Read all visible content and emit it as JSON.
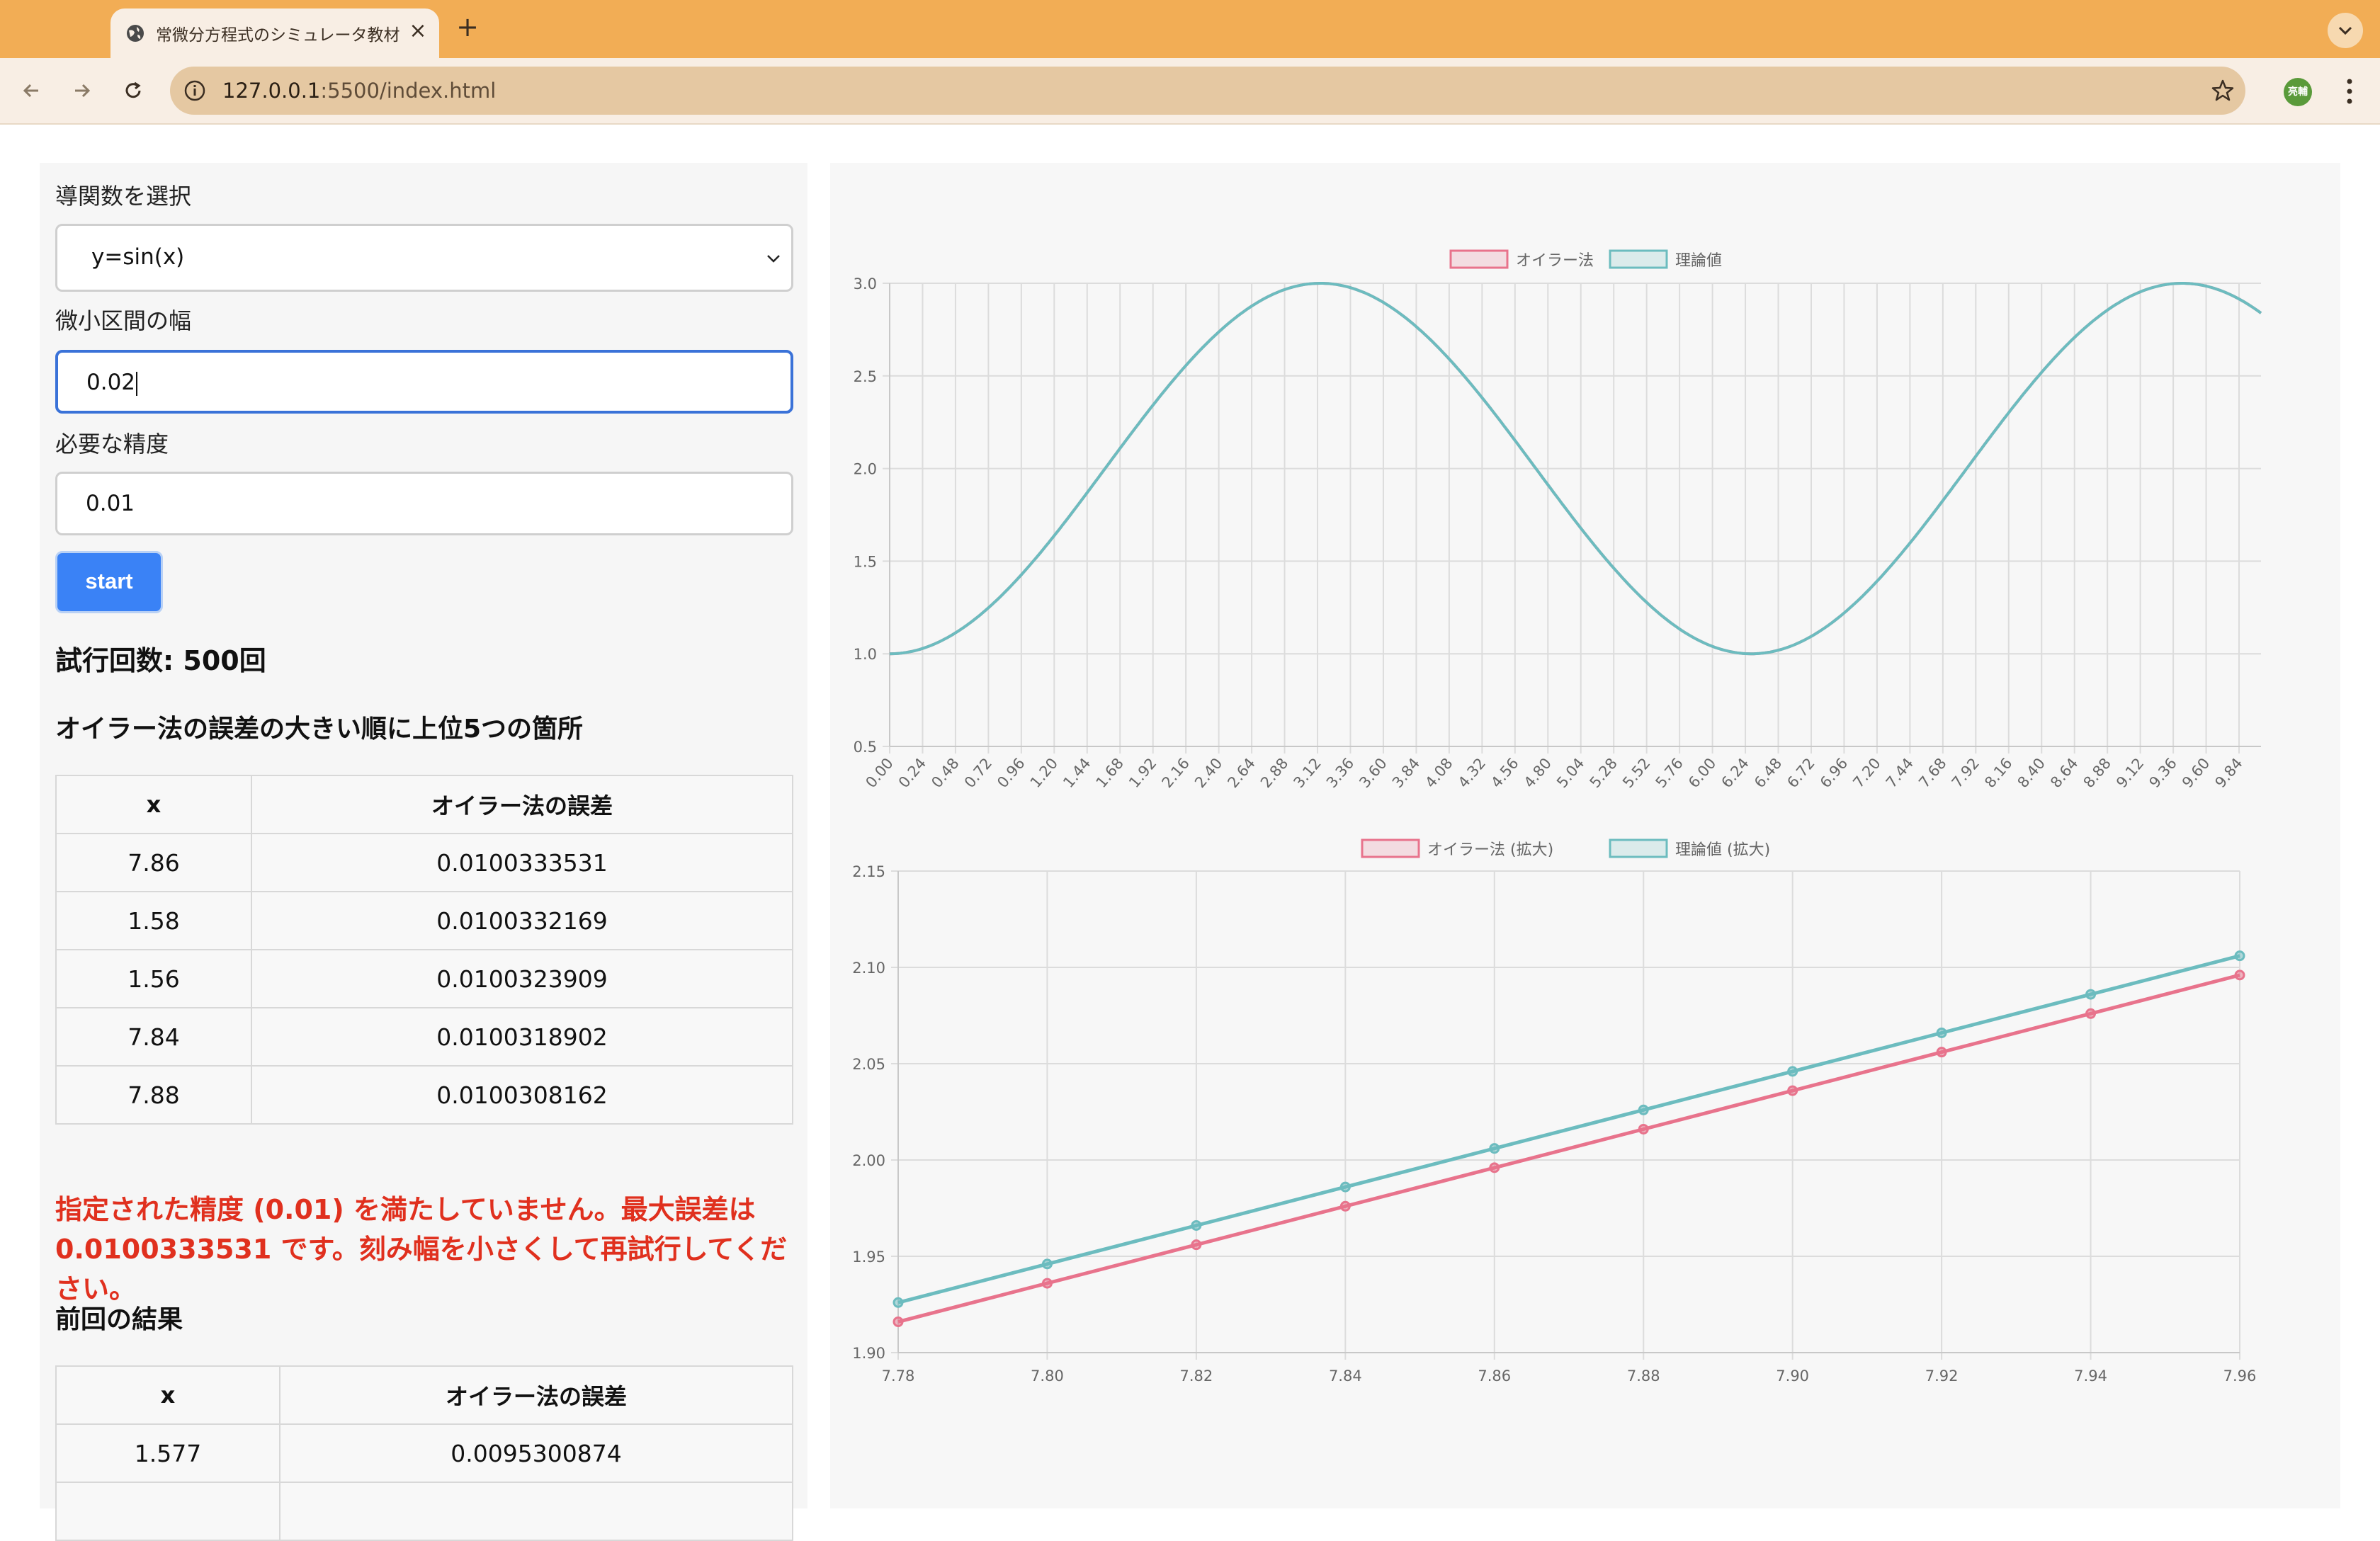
{
  "browser": {
    "tab_title": "常微分方程式のシミュレータ教材",
    "url_host": "127.0.0.1",
    "url_path": ":5500/index.html",
    "avatar_text": "亮輔"
  },
  "form": {
    "derivative_label": "導関数を選択",
    "derivative_value": "y=sin(x)",
    "step_label": "微小区間の幅",
    "step_value": "0.02",
    "precision_label": "必要な精度",
    "precision_value": "0.01",
    "start_label": "start"
  },
  "results": {
    "trial_count": "試行回数: 500回",
    "top_title": "オイラー法の誤差の大きい順に上位5つの箇所",
    "columns": [
      "x",
      "オイラー法の誤差"
    ],
    "rows": [
      {
        "x": "7.86",
        "err": "0.0100333531"
      },
      {
        "x": "1.58",
        "err": "0.0100332169"
      },
      {
        "x": "1.56",
        "err": "0.0100323909"
      },
      {
        "x": "7.84",
        "err": "0.0100318902"
      },
      {
        "x": "7.88",
        "err": "0.0100308162"
      }
    ],
    "error_message": "指定された精度 (0.01) を満たしていません。最大誤差は 0.0100333531 です。刻み幅を小さくして再試行してください。",
    "previous_title": "前回の結果",
    "previous_columns": [
      "x",
      "オイラー法の誤差"
    ],
    "previous_rows": [
      {
        "x": "1.577",
        "err": "0.0095300874"
      }
    ]
  },
  "colors": {
    "euler": "#e8738c",
    "theory": "#6cbcbf",
    "error_text": "#e0301e",
    "button": "#3a82f6"
  },
  "chart_data": [
    {
      "type": "line",
      "legend": [
        "オイラー法",
        "理論値"
      ],
      "legend_position": "top",
      "x_ticks": [
        "0.00",
        "0.24",
        "0.48",
        "0.72",
        "0.96",
        "1.20",
        "1.44",
        "1.68",
        "1.92",
        "2.16",
        "2.40",
        "2.64",
        "2.88",
        "3.12",
        "3.36",
        "3.60",
        "3.84",
        "4.08",
        "4.32",
        "4.56",
        "4.80",
        "5.04",
        "5.28",
        "5.52",
        "5.76",
        "6.00",
        "6.24",
        "6.48",
        "6.72",
        "6.96",
        "7.20",
        "7.44",
        "7.68",
        "7.92",
        "8.16",
        "8.40",
        "8.64",
        "8.88",
        "9.12",
        "9.36",
        "9.60",
        "9.84"
      ],
      "y_ticks": [
        "0.5",
        "1.0",
        "1.5",
        "2.0",
        "2.5",
        "3.0"
      ],
      "xlim": [
        0,
        10
      ],
      "ylim": [
        0.5,
        3.0
      ],
      "series": [
        {
          "name": "オイラー法",
          "formula": "2 - cos(x)",
          "x_step": 0.02
        },
        {
          "name": "理論値",
          "formula": "2 - cos(x)",
          "x_step": 0.02
        }
      ],
      "grid": true
    },
    {
      "type": "line",
      "legend": [
        "オイラー法 (拡大)",
        "理論値 (拡大)"
      ],
      "legend_position": "top",
      "x_ticks": [
        "7.78",
        "7.80",
        "7.82",
        "7.84",
        "7.86",
        "7.88",
        "7.90",
        "7.92",
        "7.94",
        "7.96"
      ],
      "y_ticks": [
        "1.90",
        "1.95",
        "2.00",
        "2.05",
        "2.10",
        "2.15"
      ],
      "xlim": [
        7.78,
        7.96
      ],
      "ylim": [
        1.9,
        2.15
      ],
      "x": [
        7.78,
        7.8,
        7.82,
        7.84,
        7.86,
        7.88,
        7.9,
        7.92,
        7.94,
        7.96
      ],
      "series": [
        {
          "name": "オイラー法 (拡大)",
          "values": [
            1.916,
            1.936,
            1.956,
            1.976,
            1.996,
            2.016,
            2.036,
            2.056,
            2.076,
            2.096
          ]
        },
        {
          "name": "理論値 (拡大)",
          "values": [
            1.926,
            1.946,
            1.966,
            1.986,
            2.006,
            2.026,
            2.046,
            2.066,
            2.086,
            2.106
          ]
        }
      ],
      "grid": true
    }
  ]
}
